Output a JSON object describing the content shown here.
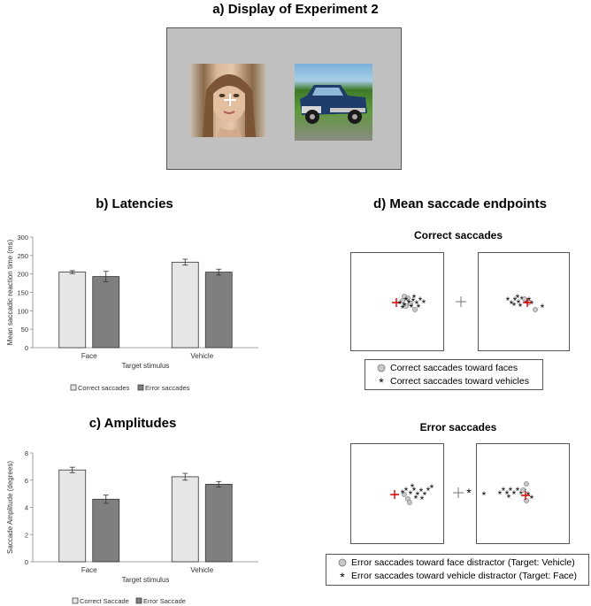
{
  "headings": {
    "a": "a) Display of Experiment 2",
    "b": "b) Latencies",
    "c": "c) Amplitudes",
    "d": "d) Mean saccade endpoints"
  },
  "subheadings": {
    "correct": "Correct saccades",
    "error": "Error saccades"
  },
  "display": {
    "background": "#c0c0c0",
    "left_stimulus": "face-photo",
    "right_stimulus": "vehicle-photo",
    "fixation": "+"
  },
  "chart_data": [
    {
      "type": "bar",
      "title": "b) Latencies",
      "categories": [
        "Face",
        "Vehicle"
      ],
      "xlabel": "Target stimulus",
      "ylabel": "Mean saccadic reaction time (ms)",
      "ylim": [
        0,
        300
      ],
      "yticks": [
        "0",
        "50",
        "100",
        "150",
        "200",
        "250",
        "300"
      ],
      "series": [
        {
          "name": "Correct saccades",
          "color": "#e6e6e6",
          "values": [
            205,
            232
          ],
          "errors": [
            4,
            8
          ]
        },
        {
          "name": "Error saccades",
          "color": "#7f7f7f",
          "values": [
            193,
            205
          ],
          "errors": [
            14,
            8
          ]
        }
      ],
      "legend_position": "bottom"
    },
    {
      "type": "bar",
      "title": "c) Amplitudes",
      "categories": [
        "Face",
        "Vehicle"
      ],
      "xlabel": "Target stimulus",
      "ylabel": "Saccade Amplitude (degrees)",
      "ylim": [
        0,
        8
      ],
      "yticks": [
        "0",
        "2",
        "4",
        "6",
        "8"
      ],
      "series": [
        {
          "name": "Correct Saccade",
          "color": "#e6e6e6",
          "values": [
            6.75,
            6.25
          ],
          "errors": [
            0.2,
            0.25
          ]
        },
        {
          "name": "Error Saccade",
          "color": "#7f7f7f",
          "values": [
            4.6,
            5.7
          ],
          "errors": [
            0.3,
            0.2
          ]
        }
      ],
      "legend_position": "bottom"
    },
    {
      "type": "scatter",
      "title": "Correct saccades",
      "legend": [
        {
          "label": "Correct saccades toward faces",
          "marker": "circle",
          "color": "#c8c8c8"
        },
        {
          "label": "Correct saccades toward vehicles",
          "marker": "asterisk",
          "color": "#000000"
        }
      ],
      "legend_position": "bottom"
    },
    {
      "type": "scatter",
      "title": "Error saccades",
      "legend": [
        {
          "label": "Error saccades toward face distractor (Target: Vehicle)",
          "marker": "circle",
          "color": "#c8c8c8"
        },
        {
          "label": "Error saccades toward vehicle distractor (Target: Face)",
          "marker": "asterisk",
          "color": "#000000"
        }
      ],
      "legend_position": "bottom"
    }
  ]
}
